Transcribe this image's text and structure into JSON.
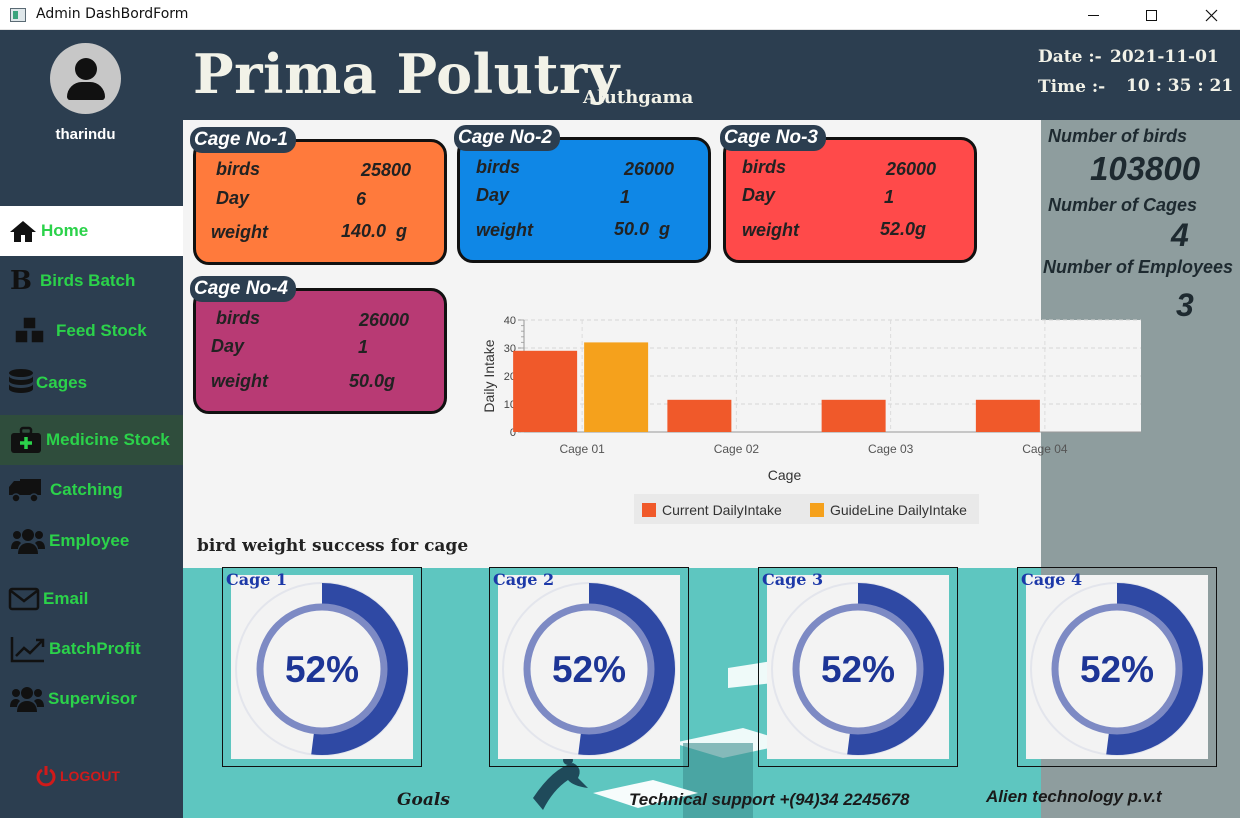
{
  "window": {
    "title": "Admin DashBordForm",
    "icon": "app-window-icon"
  },
  "header": {
    "brand": "Prima Polutry",
    "location": "Aluthgama",
    "date_label": "Date :-",
    "date_value": "2021-11-01",
    "time_label": "Time :-",
    "time_value": "10 : 35 : 21"
  },
  "sidebar": {
    "username": "tharindu",
    "items": [
      {
        "label": "Home",
        "icon": "home-icon"
      },
      {
        "label": "Birds Batch",
        "icon": "b-letter-icon"
      },
      {
        "label": "Feed Stock",
        "icon": "cubes-icon"
      },
      {
        "label": "Cages",
        "icon": "database-icon"
      },
      {
        "label": "Medicine Stock",
        "icon": "medkit-icon"
      },
      {
        "label": "Catching",
        "icon": "truck-icon"
      },
      {
        "label": "Employee",
        "icon": "users-icon"
      },
      {
        "label": "Email",
        "icon": "envelope-icon"
      },
      {
        "label": "BatchProfit",
        "icon": "chart-line-icon"
      },
      {
        "label": "Supervisor",
        "icon": "users-icon"
      }
    ],
    "logout": "LOGOUT",
    "active_color": "#2bd24a",
    "logout_color": "#d11a1a"
  },
  "cages": [
    {
      "tag": "Cage No-1",
      "birds_label": "birds",
      "birds": "25800",
      "day_label": "Day",
      "day": "6",
      "weight_label": "weight",
      "weight": "140.0  g",
      "color": "#ff7a3c"
    },
    {
      "tag": "Cage No-2",
      "birds_label": "birds",
      "birds": "26000",
      "day_label": "Day",
      "day": "1",
      "weight_label": "weight",
      "weight": "50.0  g",
      "color": "#0f87e6"
    },
    {
      "tag": "Cage No-3",
      "birds_label": "birds",
      "birds": "26000",
      "day_label": "Day",
      "day": "1",
      "weight_label": "weight",
      "weight": "52.0g",
      "color": "#ff4a4a"
    },
    {
      "tag": "Cage No-4",
      "birds_label": "birds",
      "birds": "26000",
      "day_label": "Day",
      "day": "1",
      "weight_label": "weight",
      "weight": "50.0g",
      "color": "#b83a74"
    }
  ],
  "stats": {
    "birds_label": "Number of birds",
    "birds_value": "103800",
    "cages_label": "Number of Cages",
    "cages_value": "4",
    "employees_label": "Number of  Employees",
    "employees_value": "3"
  },
  "chart_data": {
    "type": "bar",
    "categories": [
      "Cage 01",
      "Cage 02",
      "Cage 03",
      "Cage 04"
    ],
    "series": [
      {
        "name": "Current DailyIntake",
        "values": [
          29,
          11.5,
          11.5,
          11.5
        ],
        "color": "#f0592a"
      },
      {
        "name": "GuideLine DailyIntake",
        "values": [
          32,
          0,
          0,
          0
        ],
        "color": "#f5a11c"
      }
    ],
    "xlabel": "Cage",
    "ylabel": "Daily Intake",
    "ylim": [
      0,
      40
    ],
    "yticks": [
      "0",
      "10",
      "20",
      "30",
      "40"
    ],
    "grid": true,
    "legend": "bottom"
  },
  "weights": {
    "title": "bird weight success for cage",
    "gauges": [
      {
        "label": "Cage 1",
        "value_text": "52%",
        "fraction": 0.52
      },
      {
        "label": "Cage 2",
        "value_text": "52%",
        "fraction": 0.52
      },
      {
        "label": "Cage 3",
        "value_text": "52%",
        "fraction": 0.52
      },
      {
        "label": "Cage 4",
        "value_text": "52%",
        "fraction": 0.52
      }
    ],
    "gauge_color": "#2f49a4"
  },
  "footer": {
    "goals": "Goals",
    "support": "Technical support +(94)34 2245678",
    "company": "Alien technology p.v.t"
  }
}
